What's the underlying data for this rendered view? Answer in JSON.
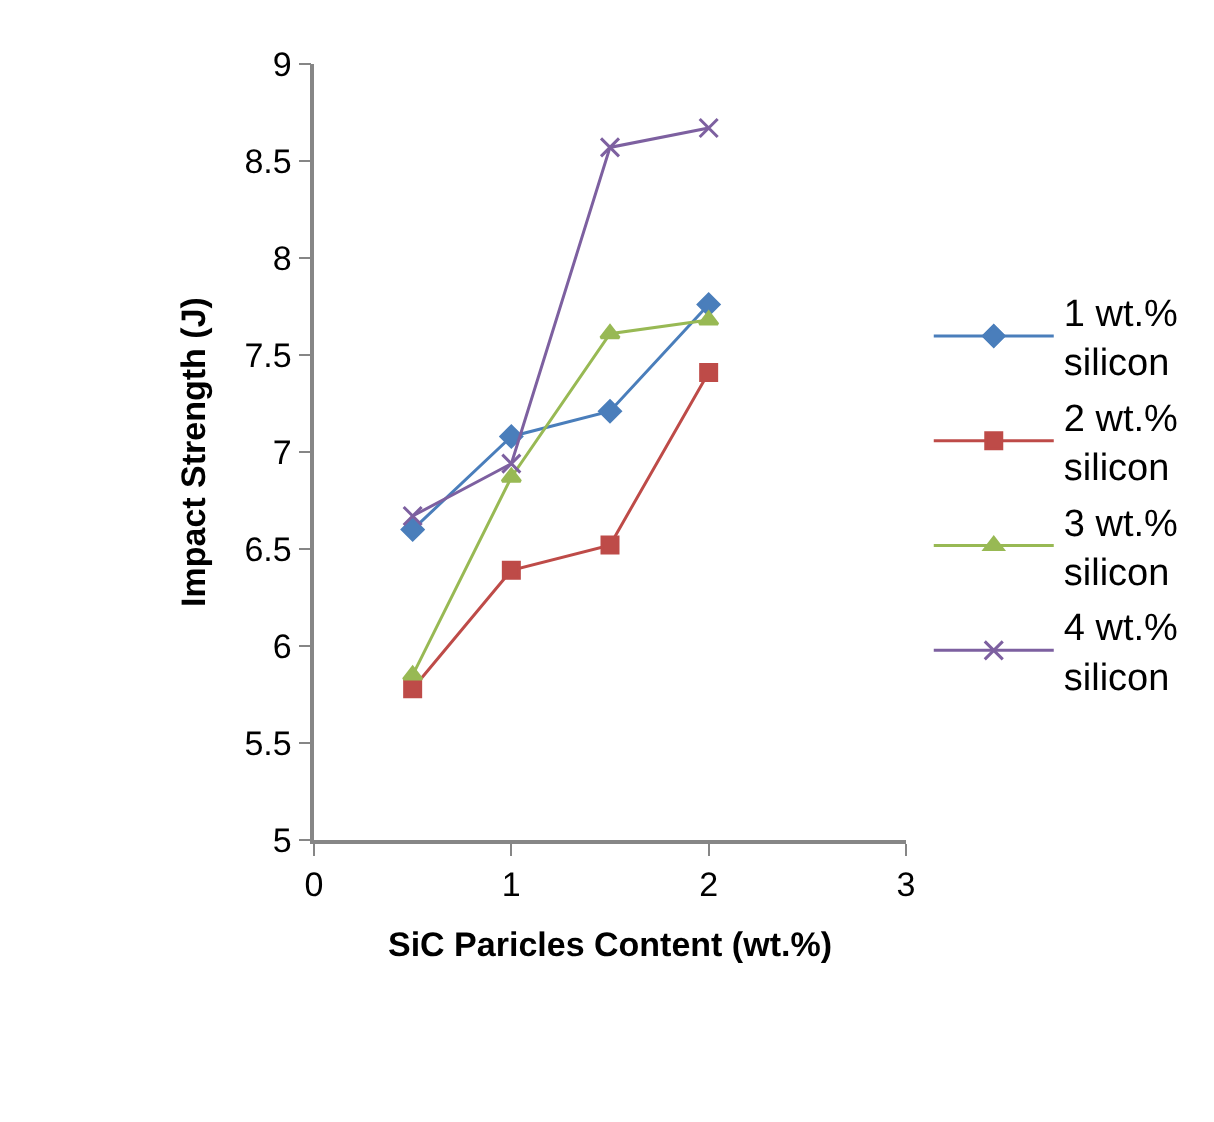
{
  "chart_data": {
    "type": "line",
    "xlabel": "SiC Paricles Content (wt.%)",
    "ylabel": "Impact Strength (J)",
    "x": [
      0.5,
      1,
      1.5,
      2
    ],
    "xlim": [
      0,
      3
    ],
    "xticks": [
      0,
      1,
      2,
      3
    ],
    "ylim": [
      5,
      9
    ],
    "yticks": [
      5,
      5.5,
      6,
      6.5,
      7,
      7.5,
      8,
      8.5,
      9
    ],
    "legend": "right",
    "series": [
      {
        "name": "1 wt.% silicon",
        "color": "#4a7ebb",
        "marker": "diamond",
        "values": [
          6.6,
          7.08,
          7.21,
          7.76
        ]
      },
      {
        "name": "2 wt.% silicon",
        "color": "#be4b48",
        "marker": "square",
        "values": [
          5.78,
          6.39,
          6.52,
          7.41
        ]
      },
      {
        "name": "3 wt.% silicon",
        "color": "#98b954",
        "marker": "triangle",
        "values": [
          5.85,
          6.87,
          7.61,
          7.68
        ]
      },
      {
        "name": "4 wt.% silicon",
        "color": "#7d60a0",
        "marker": "cross",
        "values": [
          6.67,
          6.94,
          8.57,
          8.67
        ]
      }
    ]
  }
}
